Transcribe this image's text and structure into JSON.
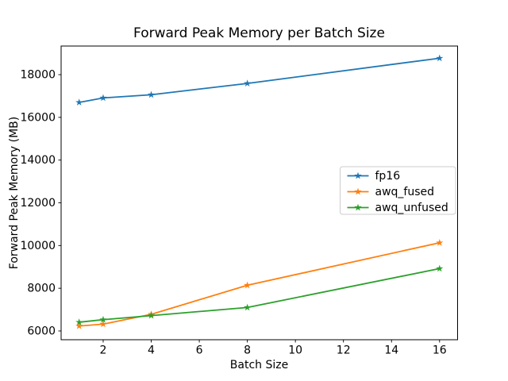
{
  "figure": {
    "background": "#ffffff"
  },
  "chart_data": {
    "type": "line",
    "title": "Forward Peak Memory per Batch Size",
    "xlabel": "Batch Size",
    "ylabel": "Forward Peak Memory (MB)",
    "x": [
      1,
      2,
      4,
      8,
      16
    ],
    "series": [
      {
        "name": "fp16",
        "color": "#1f77b4",
        "marker": "star",
        "values": [
          16700,
          16910,
          17060,
          17590,
          18770
        ]
      },
      {
        "name": "awq_fused",
        "color": "#ff7f0e",
        "marker": "star",
        "values": [
          6230,
          6320,
          6780,
          8140,
          10130
        ]
      },
      {
        "name": "awq_unfused",
        "color": "#2ca02c",
        "marker": "star",
        "values": [
          6410,
          6530,
          6720,
          7100,
          8920
        ]
      }
    ],
    "xlim": [
      0.25,
      16.75
    ],
    "ylim": [
      5590,
      19340
    ],
    "xticks": [
      2,
      4,
      6,
      8,
      10,
      12,
      14,
      16
    ],
    "yticks": [
      6000,
      8000,
      10000,
      12000,
      14000,
      16000,
      18000
    ],
    "grid": false,
    "legend_position": "center-right",
    "spine_color": "#000000",
    "legend_edge_color": "#cccccc"
  }
}
